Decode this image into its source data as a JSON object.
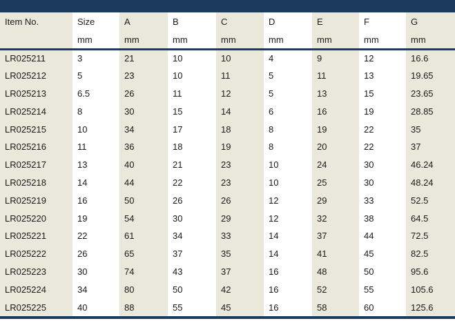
{
  "colors": {
    "header_bar_navy": "#1c3a5d",
    "stripe_beige": "#eae7db",
    "stripe_white": "#ffffff",
    "text": "#1a1a1a"
  },
  "table": {
    "columns": [
      {
        "label": "Item No.",
        "unit": ""
      },
      {
        "label": "Size",
        "unit": "mm"
      },
      {
        "label": "A",
        "unit": "mm"
      },
      {
        "label": "B",
        "unit": "mm"
      },
      {
        "label": "C",
        "unit": "mm"
      },
      {
        "label": "D",
        "unit": "mm"
      },
      {
        "label": "E",
        "unit": "mm"
      },
      {
        "label": "F",
        "unit": "mm"
      },
      {
        "label": "G",
        "unit": "mm"
      }
    ],
    "rows": [
      [
        "LR025211",
        "3",
        "21",
        "10",
        "10",
        "4",
        "9",
        "12",
        "16.6"
      ],
      [
        "LR025212",
        "5",
        "23",
        "10",
        "11",
        "5",
        "11",
        "13",
        "19.65"
      ],
      [
        "LR025213",
        "6.5",
        "26",
        "11",
        "12",
        "5",
        "13",
        "15",
        "23.65"
      ],
      [
        "LR025214",
        "8",
        "30",
        "15",
        "14",
        "6",
        "16",
        "19",
        "28.85"
      ],
      [
        "LR025215",
        "10",
        "34",
        "17",
        "18",
        "8",
        "19",
        "22",
        "35"
      ],
      [
        "LR025216",
        "11",
        "36",
        "18",
        "19",
        "8",
        "20",
        "22",
        "37"
      ],
      [
        "LR025217",
        "13",
        "40",
        "21",
        "23",
        "10",
        "24",
        "30",
        "46.24"
      ],
      [
        "LR025218",
        "14",
        "44",
        "22",
        "23",
        "10",
        "25",
        "30",
        "48.24"
      ],
      [
        "LR025219",
        "16",
        "50",
        "26",
        "26",
        "12",
        "29",
        "33",
        "52.5"
      ],
      [
        "LR025220",
        "19",
        "54",
        "30",
        "29",
        "12",
        "32",
        "38",
        "64.5"
      ],
      [
        "LR025221",
        "22",
        "61",
        "34",
        "33",
        "14",
        "37",
        "44",
        "72.5"
      ],
      [
        "LR025222",
        "26",
        "65",
        "37",
        "35",
        "14",
        "41",
        "45",
        "82.5"
      ],
      [
        "LR025223",
        "30",
        "74",
        "43",
        "37",
        "16",
        "48",
        "50",
        "95.6"
      ],
      [
        "LR025224",
        "34",
        "80",
        "50",
        "42",
        "16",
        "52",
        "55",
        "105.6"
      ],
      [
        "LR025225",
        "40",
        "88",
        "55",
        "45",
        "16",
        "58",
        "60",
        "125.6"
      ]
    ]
  }
}
